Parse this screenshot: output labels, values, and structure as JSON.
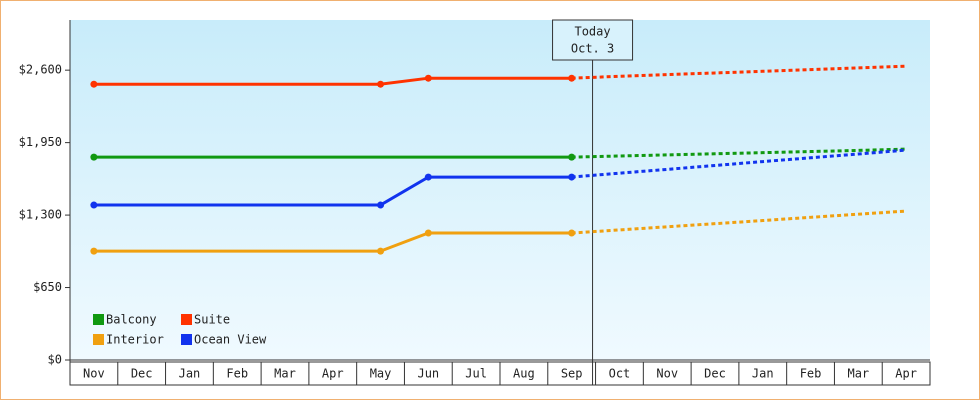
{
  "chart_data": {
    "type": "line",
    "categories": [
      "Nov",
      "Dec",
      "Jan",
      "Feb",
      "Mar",
      "Apr",
      "May",
      "Jun",
      "Jul",
      "Aug",
      "Sep",
      "Oct",
      "Nov",
      "Dec",
      "Jan",
      "Feb",
      "Mar",
      "Apr"
    ],
    "annotation": {
      "label": "Today",
      "date": "Oct. 3"
    },
    "ylim": [
      0,
      3050
    ],
    "yticks": [
      {
        "value": 0,
        "label": "$0"
      },
      {
        "value": 650,
        "label": "$650"
      },
      {
        "value": 1300,
        "label": "$1,300"
      },
      {
        "value": 1950,
        "label": "$1,950"
      },
      {
        "value": 2600,
        "label": "$2,600"
      }
    ],
    "series": [
      {
        "name": "Balcony",
        "color": "#119911",
        "values": [
          1820,
          1820,
          1820,
          1820,
          1820,
          1820,
          1820,
          1820,
          1820,
          1820,
          1820,
          null,
          null,
          null,
          null,
          null,
          null,
          null
        ],
        "forecast": [
          null,
          null,
          null,
          null,
          null,
          null,
          null,
          null,
          null,
          null,
          1820,
          1830,
          1840,
          1850,
          1860,
          1870,
          1880,
          1892
        ]
      },
      {
        "name": "Suite",
        "color": "#ff3300",
        "values": [
          2474,
          2474,
          2474,
          2474,
          2474,
          2474,
          2474,
          2528,
          2528,
          2528,
          2528,
          null,
          null,
          null,
          null,
          null,
          null,
          null
        ],
        "forecast": [
          null,
          null,
          null,
          null,
          null,
          null,
          null,
          null,
          null,
          null,
          2528,
          2545,
          2560,
          2575,
          2590,
          2605,
          2620,
          2636
        ]
      },
      {
        "name": "Interior",
        "color": "#f0a010",
        "values": [
          977,
          977,
          977,
          977,
          977,
          977,
          977,
          1139,
          1139,
          1139,
          1139,
          null,
          null,
          null,
          null,
          null,
          null,
          null
        ],
        "forecast": [
          null,
          null,
          null,
          null,
          null,
          null,
          null,
          null,
          null,
          null,
          1139,
          1167,
          1195,
          1223,
          1251,
          1280,
          1308,
          1336
        ]
      },
      {
        "name": "Ocean View",
        "color": "#1133ee",
        "values": [
          1390,
          1390,
          1390,
          1390,
          1390,
          1390,
          1390,
          1641,
          1641,
          1641,
          1641,
          null,
          null,
          null,
          null,
          null,
          null,
          null
        ],
        "forecast": [
          null,
          null,
          null,
          null,
          null,
          null,
          null,
          null,
          null,
          null,
          1641,
          1676,
          1710,
          1745,
          1780,
          1814,
          1848,
          1883
        ]
      }
    ]
  }
}
